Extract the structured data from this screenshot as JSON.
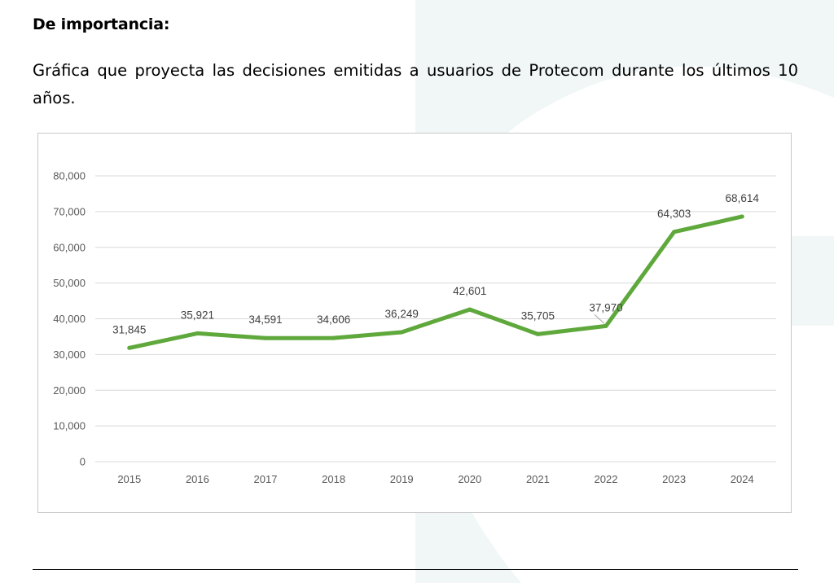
{
  "document": {
    "heading": "De importancia:",
    "description": "Gráfica que proyecta las decisiones emitidas a usuarios de Protecom durante los últimos 10 años."
  },
  "colors": {
    "line": "#5fa83c",
    "gridline": "#d9d9d9",
    "tick_text": "#595959",
    "label_text": "#404040",
    "watermark": "#eef6f6"
  },
  "chart_data": {
    "type": "line",
    "title": "",
    "xlabel": "",
    "ylabel": "",
    "x": [
      "2015",
      "2016",
      "2017",
      "2018",
      "2019",
      "2020",
      "2021",
      "2022",
      "2023",
      "2024"
    ],
    "series": [
      {
        "values": [
          31845,
          35921,
          34591,
          34606,
          36249,
          42601,
          35705,
          37970,
          64303,
          68614
        ]
      }
    ],
    "data_labels": [
      "31,845",
      "35,921",
      "34,591",
      "34,606",
      "36,249",
      "42,601",
      "35,705",
      "37,970",
      "64,303",
      "68,614"
    ],
    "ylim": [
      0,
      80000
    ],
    "y_ticks": [
      0,
      10000,
      20000,
      30000,
      40000,
      50000,
      60000,
      70000,
      80000
    ],
    "y_tick_labels": [
      "0",
      "10,000",
      "20,000",
      "30,000",
      "40,000",
      "50,000",
      "60,000",
      "70,000",
      "80,000"
    ],
    "grid": true,
    "legend": "none"
  }
}
